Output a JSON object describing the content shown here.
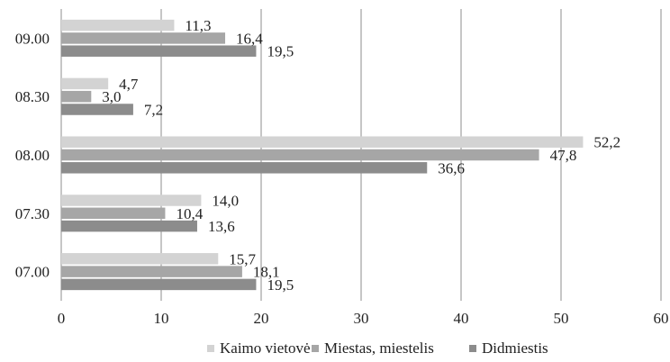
{
  "chart_data": {
    "type": "bar",
    "orientation": "horizontal",
    "categories": [
      "09.00",
      "08.30",
      "08.00",
      "07.30",
      "07.00"
    ],
    "series": [
      {
        "name": "Kaimo vietovė",
        "values": [
          11.3,
          4.7,
          52.2,
          14.0,
          15.7
        ],
        "labels": [
          "11,3",
          "4,7",
          "52,2",
          "14,0",
          "15,7"
        ],
        "color": "#d3d3d3"
      },
      {
        "name": "Miestas, miestelis",
        "values": [
          16.4,
          3.0,
          47.8,
          10.4,
          18.1
        ],
        "labels": [
          "16,4",
          "3,0",
          "47,8",
          "10,4",
          "18,1"
        ],
        "color": "#a6a6a6"
      },
      {
        "name": "Didmiestis",
        "values": [
          19.5,
          7.2,
          36.6,
          13.6,
          19.5
        ],
        "labels": [
          "19,5",
          "7,2",
          "36,6",
          "13,6",
          "19,5"
        ],
        "color": "#8c8c8c"
      }
    ],
    "xlim": [
      0,
      60
    ],
    "xticks": [
      "0",
      "10",
      "20",
      "30",
      "40",
      "50",
      "60"
    ],
    "grid": true,
    "legend_position": "bottom"
  }
}
